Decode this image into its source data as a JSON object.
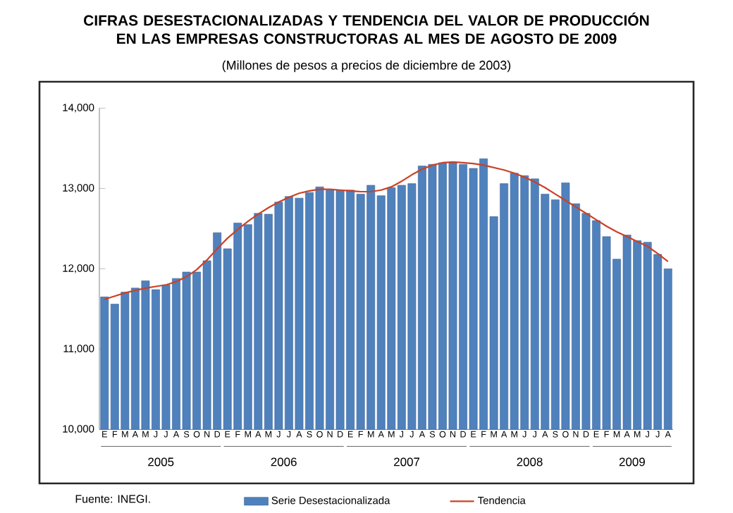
{
  "chart_data": {
    "type": "bar",
    "title": "CIFRAS DESESTACIONALIZADAS Y TENDENCIA DEL VALOR DE PRODUCCIÓN EN LAS EMPRESAS CONSTRUCTORAS AL MES DE AGOSTO DE 2009",
    "subtitle": "(Millones de pesos a precios de diciembre de 2003)",
    "categories": [
      "E",
      "F",
      "M",
      "A",
      "M",
      "J",
      "J",
      "A",
      "S",
      "O",
      "N",
      "D",
      "E",
      "F",
      "M",
      "A",
      "M",
      "J",
      "J",
      "A",
      "S",
      "O",
      "N",
      "D",
      "E",
      "F",
      "M",
      "A",
      "M",
      "J",
      "J",
      "A",
      "S",
      "O",
      "N",
      "D",
      "E",
      "F",
      "M",
      "A",
      "M",
      "J",
      "J",
      "A",
      "S",
      "O",
      "N",
      "D",
      "E",
      "F",
      "M",
      "A",
      "M",
      "J",
      "J",
      "A"
    ],
    "series": [
      {
        "name": "Serie Desestacionalizada",
        "color": "#4f81bd",
        "values": [
          11650,
          11560,
          11710,
          11760,
          11850,
          11740,
          11800,
          11880,
          11960,
          11960,
          12100,
          12450,
          12250,
          12570,
          12550,
          12690,
          12680,
          12830,
          12900,
          12880,
          12950,
          13020,
          12980,
          12980,
          12980,
          12930,
          13040,
          12910,
          13010,
          13040,
          13060,
          13280,
          13300,
          13320,
          13320,
          13300,
          13250,
          13370,
          12650,
          13060,
          13190,
          13160,
          13120,
          12930,
          12860,
          13070,
          12810,
          12690,
          12600,
          12400,
          12120,
          12420,
          12350,
          12330,
          12180,
          12000
        ]
      },
      {
        "name": "Tendencia",
        "type": "line",
        "color": "#cc4125",
        "values": [
          11620,
          11660,
          11700,
          11730,
          11760,
          11780,
          11800,
          11840,
          11900,
          11990,
          12110,
          12250,
          12380,
          12490,
          12590,
          12680,
          12760,
          12830,
          12890,
          12940,
          12970,
          12990,
          12990,
          12980,
          12970,
          12960,
          12960,
          12980,
          13020,
          13090,
          13170,
          13240,
          13290,
          13320,
          13330,
          13320,
          13310,
          13290,
          13260,
          13230,
          13190,
          13140,
          13080,
          13010,
          12930,
          12850,
          12770,
          12690,
          12610,
          12530,
          12460,
          12400,
          12340,
          12280,
          12190,
          12090
        ]
      }
    ],
    "ylim": [
      10000,
      14000
    ],
    "yticks": [
      {
        "value": 10000,
        "label": "10,000"
      },
      {
        "value": 11000,
        "label": "11,000"
      },
      {
        "value": 12000,
        "label": "12,000"
      },
      {
        "value": 13000,
        "label": "13,000"
      },
      {
        "value": 14000,
        "label": "14,000"
      }
    ],
    "legend": "bottom",
    "annotations": [
      "2005",
      "2006",
      "2007",
      "2008",
      "2009",
      "Fuente: INEGI."
    ]
  }
}
